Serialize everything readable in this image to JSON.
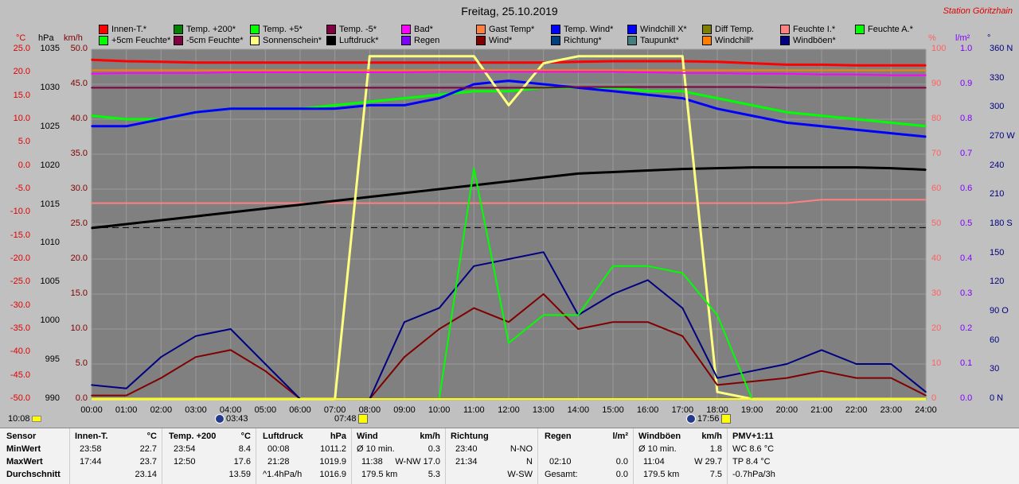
{
  "title": "Freitag, 25.10.2019",
  "station": "Station Göritzhain",
  "legend": [
    {
      "label": "Innen-T.*",
      "color": "#ff0000"
    },
    {
      "label": "Temp. +200*",
      "color": "#008000"
    },
    {
      "label": "Temp. +5*",
      "color": "#00ff00"
    },
    {
      "label": "Temp. -5*",
      "color": "#800040"
    },
    {
      "label": "Bad*",
      "color": "#ff00ff"
    },
    {
      "label": "Gast Temp*",
      "color": "#ff8040"
    },
    {
      "label": "Temp. Wind*",
      "color": "#0000ff"
    },
    {
      "label": "Windchill X*",
      "color": "#0000ff"
    },
    {
      "label": "Diff Temp.",
      "color": "#808000"
    },
    {
      "label": "Feuchte I.*",
      "color": "#ff8080"
    },
    {
      "label": "Feuchte A.*",
      "color": "#00ff00"
    },
    {
      "label": "+5cm Feuchte*",
      "color": "#00ff00"
    },
    {
      "label": "-5cm Feuchte*",
      "color": "#800040"
    },
    {
      "label": "Sonnenschein*",
      "color": "#ffff80"
    },
    {
      "label": "Luftdruck*",
      "color": "#000000"
    },
    {
      "label": "Regen",
      "color": "#8000ff"
    },
    {
      "label": "Wind*",
      "color": "#800000"
    },
    {
      "label": "Richtung*",
      "color": "#004080"
    },
    {
      "label": "Taupunkt*",
      "color": "#408080"
    },
    {
      "label": "Windchill*",
      "color": "#ff8000"
    },
    {
      "label": "Windböen*",
      "color": "#000080"
    }
  ],
  "units": {
    "c": "°C",
    "hpa": "hPa",
    "kmh": "km/h",
    "pct": "%",
    "lm2": "l/m²",
    "deg": "°"
  },
  "axes": {
    "c": [
      "25.0",
      "20.0",
      "15.0",
      "10.0",
      "5.0",
      "0.0",
      "-5.0",
      "-10.0",
      "-15.0",
      "-20.0",
      "-25.0",
      "-30.0",
      "-35.0",
      "-40.0",
      "-45.0",
      "-50.0"
    ],
    "hpa": [
      "1035",
      "1030",
      "1025",
      "1020",
      "1015",
      "1010",
      "1005",
      "1000",
      "995",
      "990"
    ],
    "kmh": [
      "50.0",
      "45.0",
      "40.0",
      "35.0",
      "30.0",
      "25.0",
      "20.0",
      "15.0",
      "10.0",
      "5.0",
      "0.0"
    ],
    "pct": [
      "100",
      "90",
      "80",
      "70",
      "60",
      "50",
      "40",
      "30",
      "20",
      "10",
      "0"
    ],
    "lm2": [
      "1.0",
      "0.9",
      "0.8",
      "0.7",
      "0.6",
      "0.5",
      "0.4",
      "0.3",
      "0.2",
      "0.1",
      "0.0"
    ],
    "deg": [
      "360 N",
      "330",
      "300",
      "270 W",
      "240",
      "210",
      "180 S",
      "150",
      "120",
      "90 O",
      "60",
      "30",
      "0 N"
    ],
    "x": [
      "00:00",
      "01:00",
      "02:00",
      "03:00",
      "04:00",
      "05:00",
      "06:00",
      "07:00",
      "08:00",
      "09:00",
      "10:00",
      "11:00",
      "12:00",
      "13:00",
      "14:00",
      "15:00",
      "16:00",
      "17:00",
      "18:00",
      "19:00",
      "20:00",
      "21:00",
      "22:00",
      "23:00",
      "24:00"
    ]
  },
  "markers": {
    "clock": "10:08",
    "moonrise": "03:43",
    "sunrise": "07:48",
    "moonset": "17:56",
    "sunset": ""
  },
  "chart_data": {
    "type": "line",
    "title": "Freitag, 25.10.2019",
    "x": [
      0,
      1,
      2,
      3,
      4,
      5,
      6,
      7,
      8,
      9,
      10,
      11,
      12,
      13,
      14,
      15,
      16,
      17,
      18,
      19,
      20,
      21,
      22,
      23,
      24
    ],
    "series": [
      {
        "name": "Innen-T.*",
        "axis": "kmh",
        "color": "#ff0000",
        "values": [
          48.5,
          48.3,
          48.2,
          48.1,
          48.1,
          48.1,
          48.1,
          48.1,
          48.1,
          48.1,
          48.1,
          48.1,
          48.1,
          48.1,
          48.2,
          48.3,
          48.3,
          48.3,
          48.2,
          48.0,
          47.8,
          47.8,
          47.7,
          47.7,
          47.7
        ]
      },
      {
        "name": "Feuchte I.*",
        "axis": "pct",
        "color": "#ff8080",
        "values": [
          56,
          56,
          56,
          56,
          56,
          56,
          56,
          56,
          56,
          56,
          56,
          56,
          56,
          56,
          56,
          56,
          56,
          56,
          56,
          56,
          56,
          57,
          57,
          57,
          57
        ]
      },
      {
        "name": "Feuchte A.*",
        "axis": "pct",
        "color": "#00ff00",
        "values": [
          81,
          80,
          80,
          82,
          83,
          83,
          83,
          84,
          85,
          86,
          87,
          88,
          88,
          89,
          89,
          89,
          88,
          88,
          86,
          84,
          82,
          81,
          80,
          79,
          78
        ]
      },
      {
        "name": "Temp. Wind*",
        "axis": "kmh",
        "color": "#0000ff",
        "values": [
          39,
          39,
          40,
          41,
          41.5,
          41.5,
          41.5,
          41.5,
          42,
          42,
          43,
          45,
          45.5,
          45,
          44.5,
          44,
          43.5,
          43,
          41.5,
          40.5,
          39.5,
          39,
          38.5,
          38,
          37.5
        ]
      },
      {
        "name": "Luftdruck*",
        "axis": "hpa",
        "color": "#000000",
        "values": [
          1012,
          1012.5,
          1013,
          1013.5,
          1014,
          1014.5,
          1015,
          1015.5,
          1016,
          1016.5,
          1017,
          1017.5,
          1018,
          1018.5,
          1019,
          1019.2,
          1019.4,
          1019.6,
          1019.7,
          1019.8,
          1019.8,
          1019.8,
          1019.8,
          1019.7,
          1019.5
        ]
      },
      {
        "name": "Sonnenschein*",
        "axis": "kmh",
        "color": "#ffff80",
        "values": [
          0,
          0,
          0,
          0,
          0,
          0,
          0,
          0,
          49,
          49,
          49,
          49,
          42,
          48,
          49,
          49,
          49,
          49,
          1,
          0,
          0,
          0,
          0,
          0,
          0
        ]
      },
      {
        "name": "Wind*",
        "axis": "kmh",
        "color": "#800000",
        "values": [
          0.5,
          0.5,
          3,
          6,
          7,
          4,
          0,
          0,
          0,
          6,
          10,
          13,
          11,
          15,
          10,
          11,
          11,
          9,
          2,
          2.5,
          3,
          4,
          3,
          3,
          0.5
        ]
      },
      {
        "name": "Windböen*",
        "axis": "kmh",
        "color": "#000080",
        "values": [
          2,
          1.5,
          6,
          9,
          10,
          5,
          0,
          0,
          0,
          11,
          13,
          19,
          20,
          21,
          12,
          15,
          17,
          13,
          3,
          4,
          5,
          7,
          5,
          5,
          1
        ]
      },
      {
        "name": "Temp. +5*",
        "axis": "kmh",
        "color": "#00ff00",
        "values": [
          0,
          0,
          0,
          0,
          0,
          0,
          0,
          0,
          0,
          0,
          0,
          33,
          8,
          12,
          12,
          19,
          19,
          18,
          12,
          0,
          0,
          0,
          0,
          0,
          0
        ]
      },
      {
        "name": "Windchill*",
        "axis": "kmh",
        "color": "#ff8000",
        "values": [
          47,
          47,
          47,
          47,
          47,
          47,
          47,
          47,
          47,
          47,
          47,
          47,
          47,
          47,
          47,
          47,
          47,
          47,
          47,
          47,
          47,
          47,
          47,
          47,
          47
        ]
      },
      {
        "name": "Bad*",
        "axis": "kmh",
        "color": "#ff00ff",
        "values": [
          46.5,
          46.6,
          46.6,
          46.6,
          46.7,
          46.7,
          46.7,
          46.7,
          46.7,
          46.7,
          46.8,
          46.8,
          46.8,
          46.8,
          46.8,
          46.8,
          46.7,
          46.6,
          46.6,
          46.5,
          46.5,
          46.4,
          46.4,
          46.3,
          46.3
        ]
      },
      {
        "name": "Temp. -5*",
        "axis": "kmh",
        "color": "#800040",
        "values": [
          44.5,
          44.5,
          44.5,
          44.5,
          44.5,
          44.5,
          44.5,
          44.5,
          44.5,
          44.5,
          44.5,
          44.5,
          44.5,
          44.5,
          44.6,
          44.6,
          44.6,
          44.6,
          44.6,
          44.6,
          44.5,
          44.5,
          44.5,
          44.5,
          44.5
        ]
      }
    ],
    "xlabel": "",
    "ylabel": "",
    "grid": true,
    "dashed_line_value_kmh": 24.5
  },
  "stats": {
    "sensor": {
      "head": "Sensor",
      "rows": [
        "MinWert",
        "MaxWert",
        "Durchschnitt"
      ]
    },
    "innen": {
      "head": "Innen-T.",
      "unit": "°C",
      "rows": [
        [
          "23:58",
          "22.7"
        ],
        [
          "17:44",
          "23.7"
        ],
        [
          "",
          "23.14"
        ]
      ]
    },
    "temp200": {
      "head": "Temp. +200",
      "unit": "°C",
      "rows": [
        [
          "23:54",
          "8.4"
        ],
        [
          "12:50",
          "17.6"
        ],
        [
          "",
          "13.59"
        ]
      ]
    },
    "luftdruck": {
      "head": "Luftdruck",
      "unit": "hPa",
      "rows": [
        [
          "00:08",
          "1011.2"
        ],
        [
          "21:28",
          "1019.9"
        ],
        [
          "^1.4hPa/h",
          "1016.9"
        ]
      ]
    },
    "wind": {
      "head": "Wind",
      "unit": "km/h",
      "rows": [
        [
          "Ø 10 min.",
          "0.3"
        ],
        [
          "11:38",
          "W-NW 17.0"
        ],
        [
          "179.5 km",
          "5.3"
        ]
      ]
    },
    "richtung": {
      "head": "Richtung",
      "unit": "",
      "rows": [
        [
          "23:40",
          "N-NO"
        ],
        [
          "21:34",
          "N"
        ],
        [
          "",
          "W-SW"
        ]
      ]
    },
    "regen": {
      "head": "Regen",
      "unit": "l/m²",
      "rows": [
        [
          "",
          ""
        ],
        [
          "02:10",
          "0.0"
        ],
        [
          "Gesamt:",
          "0.0"
        ]
      ]
    },
    "windboeen": {
      "head": "Windböen",
      "unit": "km/h",
      "rows": [
        [
          "Ø 10 min.",
          "1.8"
        ],
        [
          "11:04",
          "W 29.7"
        ],
        [
          "179.5 km",
          "7.5"
        ]
      ]
    },
    "pmv": {
      "head": "PMV+1:11",
      "rows": [
        "WC 8.6 °C",
        "TP 8.4 °C",
        "-0.7hPa/3h"
      ]
    }
  }
}
